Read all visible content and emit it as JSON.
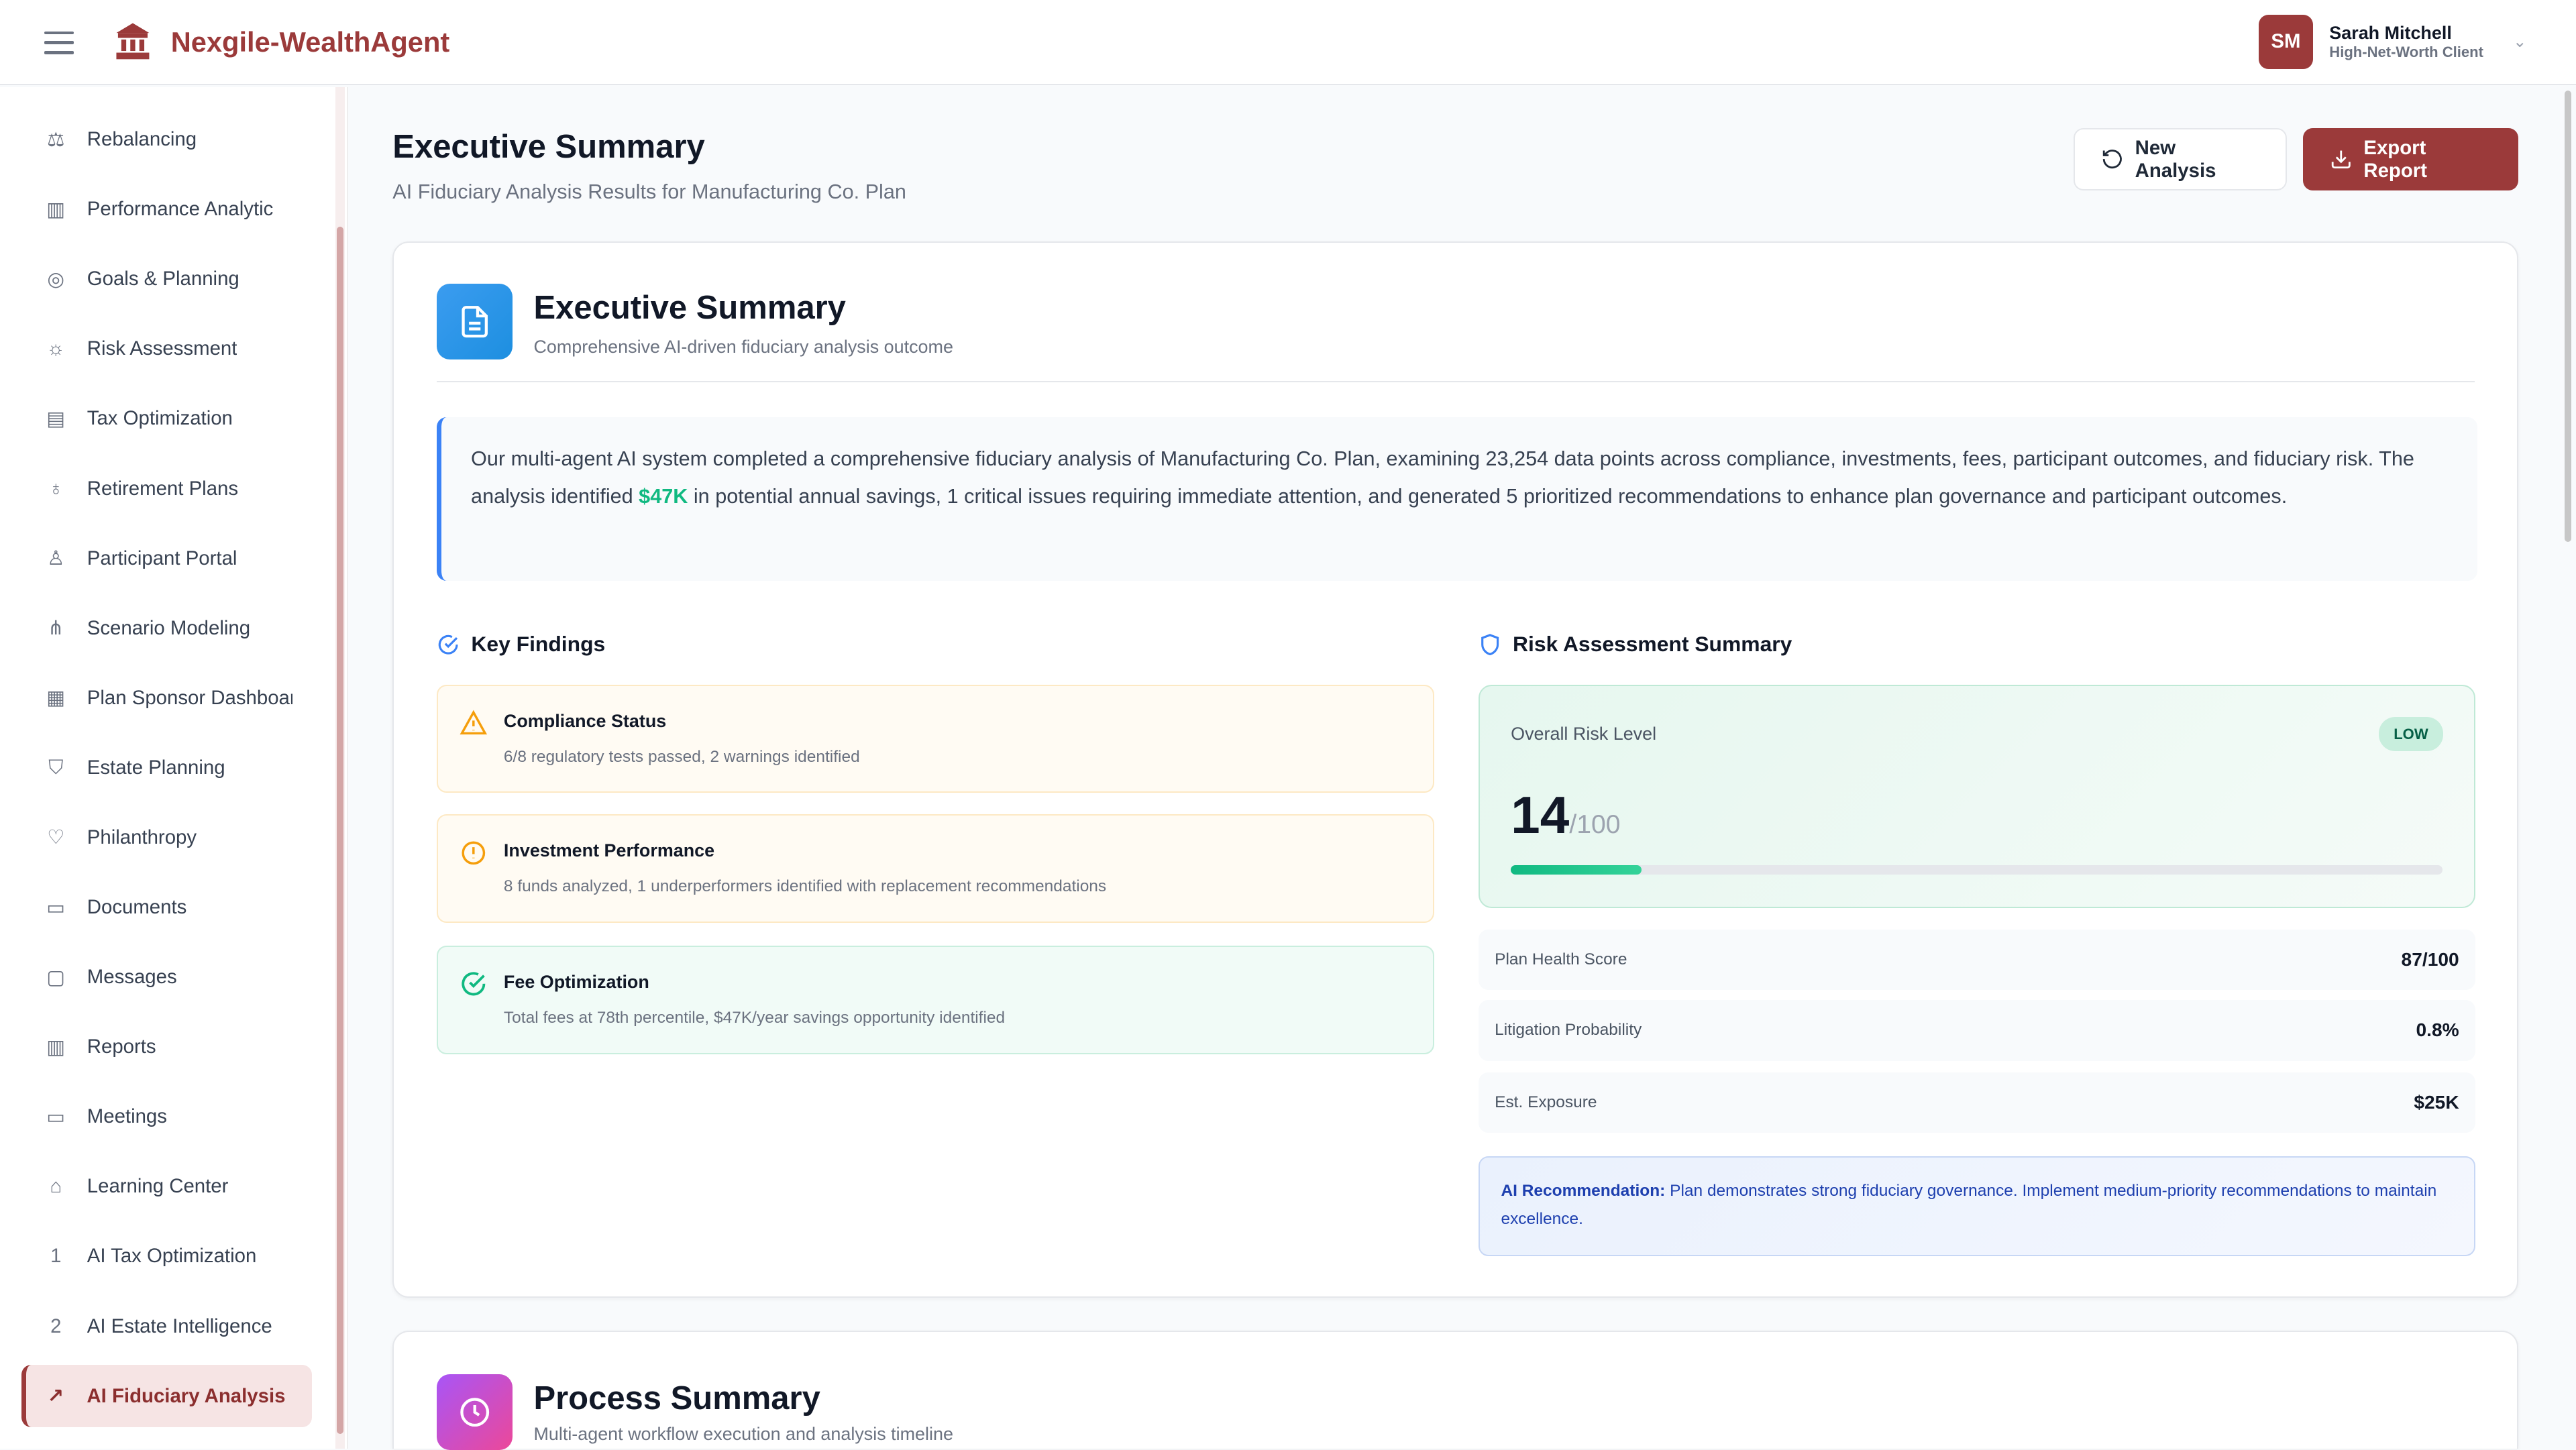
{
  "app": {
    "brand": "Nexgile-WealthAgent",
    "brand_color": "#9b3a3a"
  },
  "user": {
    "initials": "SM",
    "name": "Sarah Mitchell",
    "role": "High-Net-Worth Client"
  },
  "sidebar": {
    "items": [
      {
        "label": "Rebalancing",
        "icon": "scale-icon"
      },
      {
        "label": "Performance Analytic",
        "icon": "bar-chart-icon"
      },
      {
        "label": "Goals & Planning",
        "icon": "target-icon"
      },
      {
        "label": "Risk Assessment",
        "icon": "sun-icon"
      },
      {
        "label": "Tax Optimization",
        "icon": "document-icon"
      },
      {
        "label": "Retirement Plans",
        "icon": "piggy-icon"
      },
      {
        "label": "Participant Portal",
        "icon": "user-icon"
      },
      {
        "label": "Scenario Modeling",
        "icon": "network-icon"
      },
      {
        "label": "Plan Sponsor Dashboard",
        "icon": "building-icon"
      },
      {
        "label": "Estate Planning",
        "icon": "shield-icon"
      },
      {
        "label": "Philanthropy",
        "icon": "heart-icon"
      },
      {
        "label": "Documents",
        "icon": "folder-icon"
      },
      {
        "label": "Messages",
        "icon": "message-icon"
      },
      {
        "label": "Reports",
        "icon": "chart-icon"
      },
      {
        "label": "Meetings",
        "icon": "video-icon"
      },
      {
        "label": "Learning Center",
        "icon": "graduation-icon"
      },
      {
        "label": "AI Tax Optimization",
        "icon": "one-box-icon"
      },
      {
        "label": "AI Estate Intelligence",
        "icon": "two-box-icon"
      },
      {
        "label": "AI Fiduciary Analysis",
        "icon": "ai-box-icon",
        "active": true
      }
    ]
  },
  "header": {
    "title": "Executive Summary",
    "subtitle": "AI Fiduciary Analysis Results for Manufacturing Co. Plan",
    "new_analysis": "New Analysis",
    "export_report": "Export Report"
  },
  "summary": {
    "title": "Executive Summary",
    "subtitle": "Comprehensive AI-driven fiduciary analysis outcome",
    "intro_before": "Our multi-agent AI system completed a comprehensive fiduciary analysis of Manufacturing Co. Plan, examining 23,254 data points across compliance, investments, fees, participant outcomes, and fiduciary risk. The analysis identified ",
    "intro_savings": "$47K",
    "intro_after": " in potential annual savings, 1 critical issues requiring immediate attention, and generated 5 prioritized recommendations to enhance plan governance and participant outcomes.",
    "key_findings_title": "Key Findings",
    "findings": [
      {
        "title": "Compliance Status",
        "desc": "6/8 regulatory tests passed, 2 warnings identified",
        "status": "warning"
      },
      {
        "title": "Investment Performance",
        "desc": "8 funds analyzed, 1 underperformers identified with replacement recommendations",
        "status": "warning"
      },
      {
        "title": "Fee Optimization",
        "desc": "Total fees at 78th percentile, $47K/year savings opportunity identified",
        "status": "success"
      }
    ],
    "risk_title": "Risk Assessment Summary",
    "risk": {
      "label": "Overall Risk Level",
      "badge": "LOW",
      "score": "14",
      "max": "/100",
      "progress": 0.14
    },
    "metrics": [
      {
        "label": "Plan Health Score",
        "value": "87/100"
      },
      {
        "label": "Litigation Probability",
        "value": "0.8%"
      },
      {
        "label": "Est. Exposure",
        "value": "$25K"
      }
    ],
    "recommendation_label": "AI Recommendation:",
    "recommendation_text": " Plan demonstrates strong fiduciary governance. Implement medium-priority recommendations to maintain excellence."
  },
  "process": {
    "title": "Process Summary",
    "subtitle": "Multi-agent workflow execution and analysis timeline"
  }
}
